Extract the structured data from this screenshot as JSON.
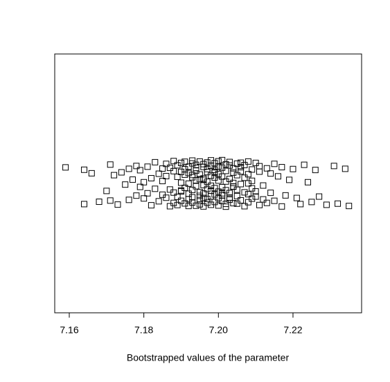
{
  "chart_data": {
    "type": "scatter",
    "xlabel": "Bootstrapped values of the parameter",
    "marker_color": "#000000",
    "xlim": [
      7.1561,
      7.2384
    ],
    "ylim": [
      0.45,
      1.55
    ],
    "xticks": [
      7.16,
      7.18,
      {
        "value": 7.2,
        "label": "7.20"
      },
      7.22
    ],
    "x": [
      7.159,
      7.164,
      7.164,
      7.166,
      7.168,
      7.17,
      7.171,
      7.171,
      7.172,
      7.173,
      7.174,
      7.175,
      7.176,
      7.176,
      7.177,
      7.178,
      7.178,
      7.179,
      7.179,
      7.18,
      7.18,
      7.181,
      7.181,
      7.182,
      7.182,
      7.183,
      7.183,
      7.184,
      7.184,
      7.185,
      7.185,
      7.185,
      7.186,
      7.186,
      7.186,
      7.187,
      7.187,
      7.187,
      7.188,
      7.188,
      7.188,
      7.188,
      7.189,
      7.189,
      7.189,
      7.189,
      7.19,
      7.19,
      7.19,
      7.19,
      7.19,
      7.191,
      7.191,
      7.191,
      7.191,
      7.191,
      7.192,
      7.192,
      7.192,
      7.192,
      7.192,
      7.192,
      7.193,
      7.193,
      7.193,
      7.193,
      7.193,
      7.193,
      7.194,
      7.194,
      7.194,
      7.194,
      7.194,
      7.194,
      7.195,
      7.195,
      7.195,
      7.195,
      7.195,
      7.195,
      7.195,
      7.196,
      7.196,
      7.196,
      7.196,
      7.196,
      7.196,
      7.196,
      7.197,
      7.197,
      7.197,
      7.197,
      7.197,
      7.197,
      7.197,
      7.198,
      7.198,
      7.198,
      7.198,
      7.198,
      7.198,
      7.198,
      7.199,
      7.199,
      7.199,
      7.199,
      7.199,
      7.199,
      7.199,
      7.2,
      7.2,
      7.2,
      7.2,
      7.2,
      7.2,
      7.2,
      7.201,
      7.201,
      7.201,
      7.201,
      7.201,
      7.201,
      7.202,
      7.202,
      7.202,
      7.202,
      7.202,
      7.202,
      7.203,
      7.203,
      7.203,
      7.203,
      7.203,
      7.203,
      7.204,
      7.204,
      7.204,
      7.204,
      7.204,
      7.205,
      7.205,
      7.205,
      7.205,
      7.205,
      7.206,
      7.206,
      7.206,
      7.206,
      7.206,
      7.207,
      7.207,
      7.207,
      7.207,
      7.208,
      7.208,
      7.208,
      7.208,
      7.209,
      7.209,
      7.209,
      7.209,
      7.21,
      7.21,
      7.21,
      7.211,
      7.211,
      7.211,
      7.212,
      7.212,
      7.213,
      7.213,
      7.214,
      7.214,
      7.215,
      7.215,
      7.216,
      7.217,
      7.217,
      7.218,
      7.219,
      7.22,
      7.221,
      7.222,
      7.223,
      7.224,
      7.225,
      7.226,
      7.227,
      7.229,
      7.231,
      7.232,
      7.234,
      7.235,
      7.208,
      7.196,
      7.201,
      7.193,
      7.204,
      7.199,
      7.19
    ],
    "y": [
      1.068,
      0.912,
      1.058,
      1.043,
      0.922,
      0.968,
      1.08,
      0.927,
      1.035,
      0.91,
      1.047,
      0.995,
      1.062,
      0.93,
      1.016,
      1.074,
      0.948,
      1.056,
      0.985,
      1.005,
      0.936,
      1.071,
      0.958,
      1.022,
      0.907,
      1.09,
      0.977,
      1.041,
      0.924,
      1.063,
      0.952,
      1.01,
      1.083,
      0.939,
      1.031,
      0.903,
      1.066,
      0.974,
      1.052,
      0.917,
      1.095,
      0.961,
      1.028,
      0.908,
      1.077,
      0.943,
      1.003,
      1.087,
      0.926,
      1.049,
      0.966,
      1.092,
      0.915,
      1.037,
      0.981,
      1.06,
      0.933,
      1.071,
      0.999,
      0.904,
      1.044,
      0.956,
      1.085,
      0.919,
      1.026,
      0.972,
      1.097,
      0.941,
      1.013,
      1.066,
      0.905,
      1.054,
      0.988,
      1.079,
      0.929,
      1.018,
      0.963,
      1.093,
      0.947,
      1.038,
      0.911,
      1.07,
      0.993,
      0.938,
      1.082,
      1.021,
      0.957,
      0.902,
      1.048,
      0.976,
      1.089,
      0.934,
      1.007,
      1.061,
      0.918,
      1.098,
      0.969,
      1.033,
      0.945,
      1.075,
      0.99,
      0.909,
      1.058,
      0.953,
      1.025,
      1.086,
      0.921,
      0.98,
      1.045,
      1.094,
      0.937,
      1.012,
      0.965,
      1.072,
      0.906,
      1.04,
      0.984,
      1.067,
      0.925,
      1.099,
      0.95,
      1.029,
      0.913,
      1.081,
      0.971,
      1.053,
      0.901,
      1.008,
      1.076,
      0.94,
      1.019,
      0.959,
      1.091,
      0.931,
      1.046,
      0.986,
      1.064,
      0.916,
      1.002,
      1.084,
      0.946,
      1.035,
      0.973,
      0.914,
      1.069,
      0.997,
      1.088,
      0.928,
      1.051,
      0.962,
      1.024,
      0.903,
      1.078,
      0.954,
      1.039,
      0.92,
      1.093,
      0.979,
      1.059,
      0.935,
      1.011,
      1.087,
      0.944,
      0.966,
      1.05,
      0.908,
      1.073,
      0.991,
      0.932,
      1.064,
      0.917,
      1.042,
      0.96,
      1.083,
      0.926,
      1.03,
      0.902,
      1.069,
      0.949,
      1.015,
      1.061,
      0.938,
      0.912,
      1.079,
      1.005,
      0.921,
      1.057,
      0.944,
      0.909,
      1.074,
      0.914,
      1.062,
      0.904,
      1.0,
      1.015,
      0.958,
      1.036,
      0.987,
      1.049,
      0.97
    ]
  }
}
